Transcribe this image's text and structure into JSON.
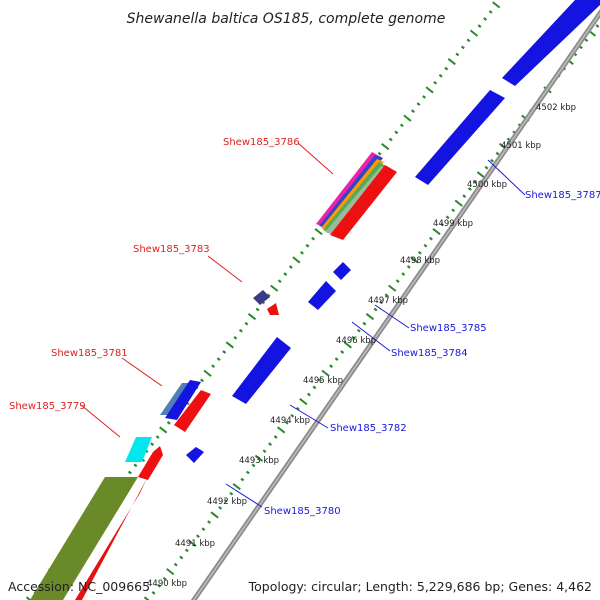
{
  "title": "Shewanella baltica OS185, complete genome",
  "footer": {
    "accession": "Accession: NC_009665",
    "summary": "Topology: circular; Length: 5,229,686 bp; Genes: 4,462"
  },
  "ticks": [
    "4490 kbp",
    "4491 kbp",
    "4492 kbp",
    "4493 kbp",
    "4494 kbp",
    "4495 kbp",
    "4496 kbp",
    "4497 kbp",
    "4498 kbp",
    "4499 kbp",
    "4500 kbp",
    "4501 kbp",
    "4502 kbp"
  ],
  "gene_labels": {
    "forward": [
      "Shew185_3779",
      "Shew185_3781",
      "Shew185_3783",
      "Shew185_3786"
    ],
    "reverse": [
      "Shew185_3780",
      "Shew185_3782",
      "Shew185_3784",
      "Shew185_3785",
      "Shew185_3787"
    ]
  },
  "colors": {
    "forward_label": "#dd2222",
    "reverse_label": "#1a1adb",
    "cds_blue": "#0a14e6",
    "cds_red": "#ee0f10",
    "backbone": "#8a8a8a",
    "dots": "#2a8a2a"
  }
}
